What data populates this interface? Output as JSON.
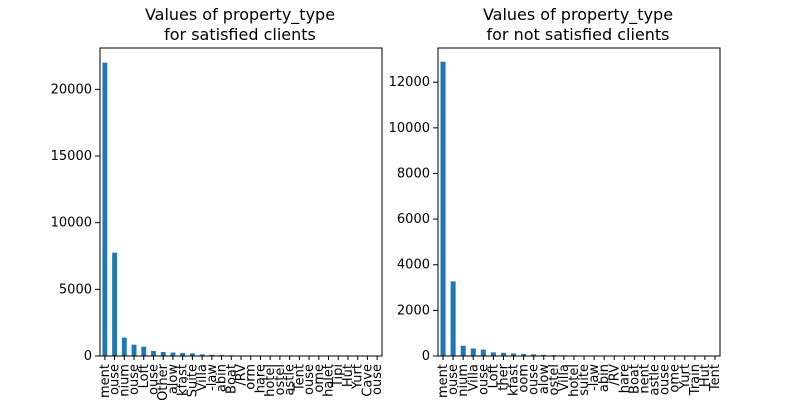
{
  "chart_data": [
    {
      "type": "bar",
      "title": "Values of property_type\nfor satisfied clients",
      "xlabel": "",
      "ylabel": "",
      "ylim": [
        0,
        23100
      ],
      "yticks": [
        0,
        5000,
        10000,
        15000,
        20000
      ],
      "grid": false,
      "categories": [
        "ment",
        "ouse",
        "nium",
        "ouse",
        "Loft",
        "ouse",
        "Other",
        "alow",
        "kfast",
        "Suite",
        "Villa",
        "-law",
        "abin",
        "Boat",
        "/RV",
        "orm",
        "hare",
        "hotel",
        "ostel",
        "astle",
        "Tent",
        "ouse",
        "ome",
        "halet",
        "Tipi",
        "Hut",
        "Yurt",
        "Cave",
        "ouse"
      ],
      "values": [
        22000,
        7750,
        1380,
        850,
        700,
        380,
        300,
        260,
        230,
        200,
        120,
        90,
        70,
        50,
        40,
        35,
        30,
        25,
        20,
        18,
        15,
        12,
        10,
        8,
        6,
        5,
        4,
        3,
        2
      ]
    },
    {
      "type": "bar",
      "title": "Values of property_type\nfor not satisfied clients",
      "xlabel": "",
      "ylabel": "",
      "ylim": [
        0,
        13500
      ],
      "yticks": [
        0,
        2000,
        4000,
        6000,
        8000,
        10000,
        12000
      ],
      "grid": false,
      "categories": [
        "ment",
        "ouse",
        "nium",
        "Villa",
        "ouse",
        "Loft",
        "ther",
        "kfast",
        "oom",
        "ouse",
        "alow",
        "ostel",
        "Villa",
        "hotel",
        "suite",
        "-law",
        "abin",
        "/RV",
        "hare",
        "Boat",
        "nent",
        "astle",
        "ouse",
        "ome",
        "Yurt",
        "Train",
        "Hut",
        "Tent"
      ],
      "values": [
        12900,
        3270,
        450,
        330,
        280,
        160,
        140,
        110,
        90,
        70,
        50,
        40,
        30,
        25,
        20,
        15,
        12,
        10,
        8,
        6,
        5,
        4,
        3,
        3,
        2,
        2,
        1,
        1
      ]
    }
  ],
  "colors": {
    "bar": "#1f77b4",
    "axis": "#000000"
  }
}
